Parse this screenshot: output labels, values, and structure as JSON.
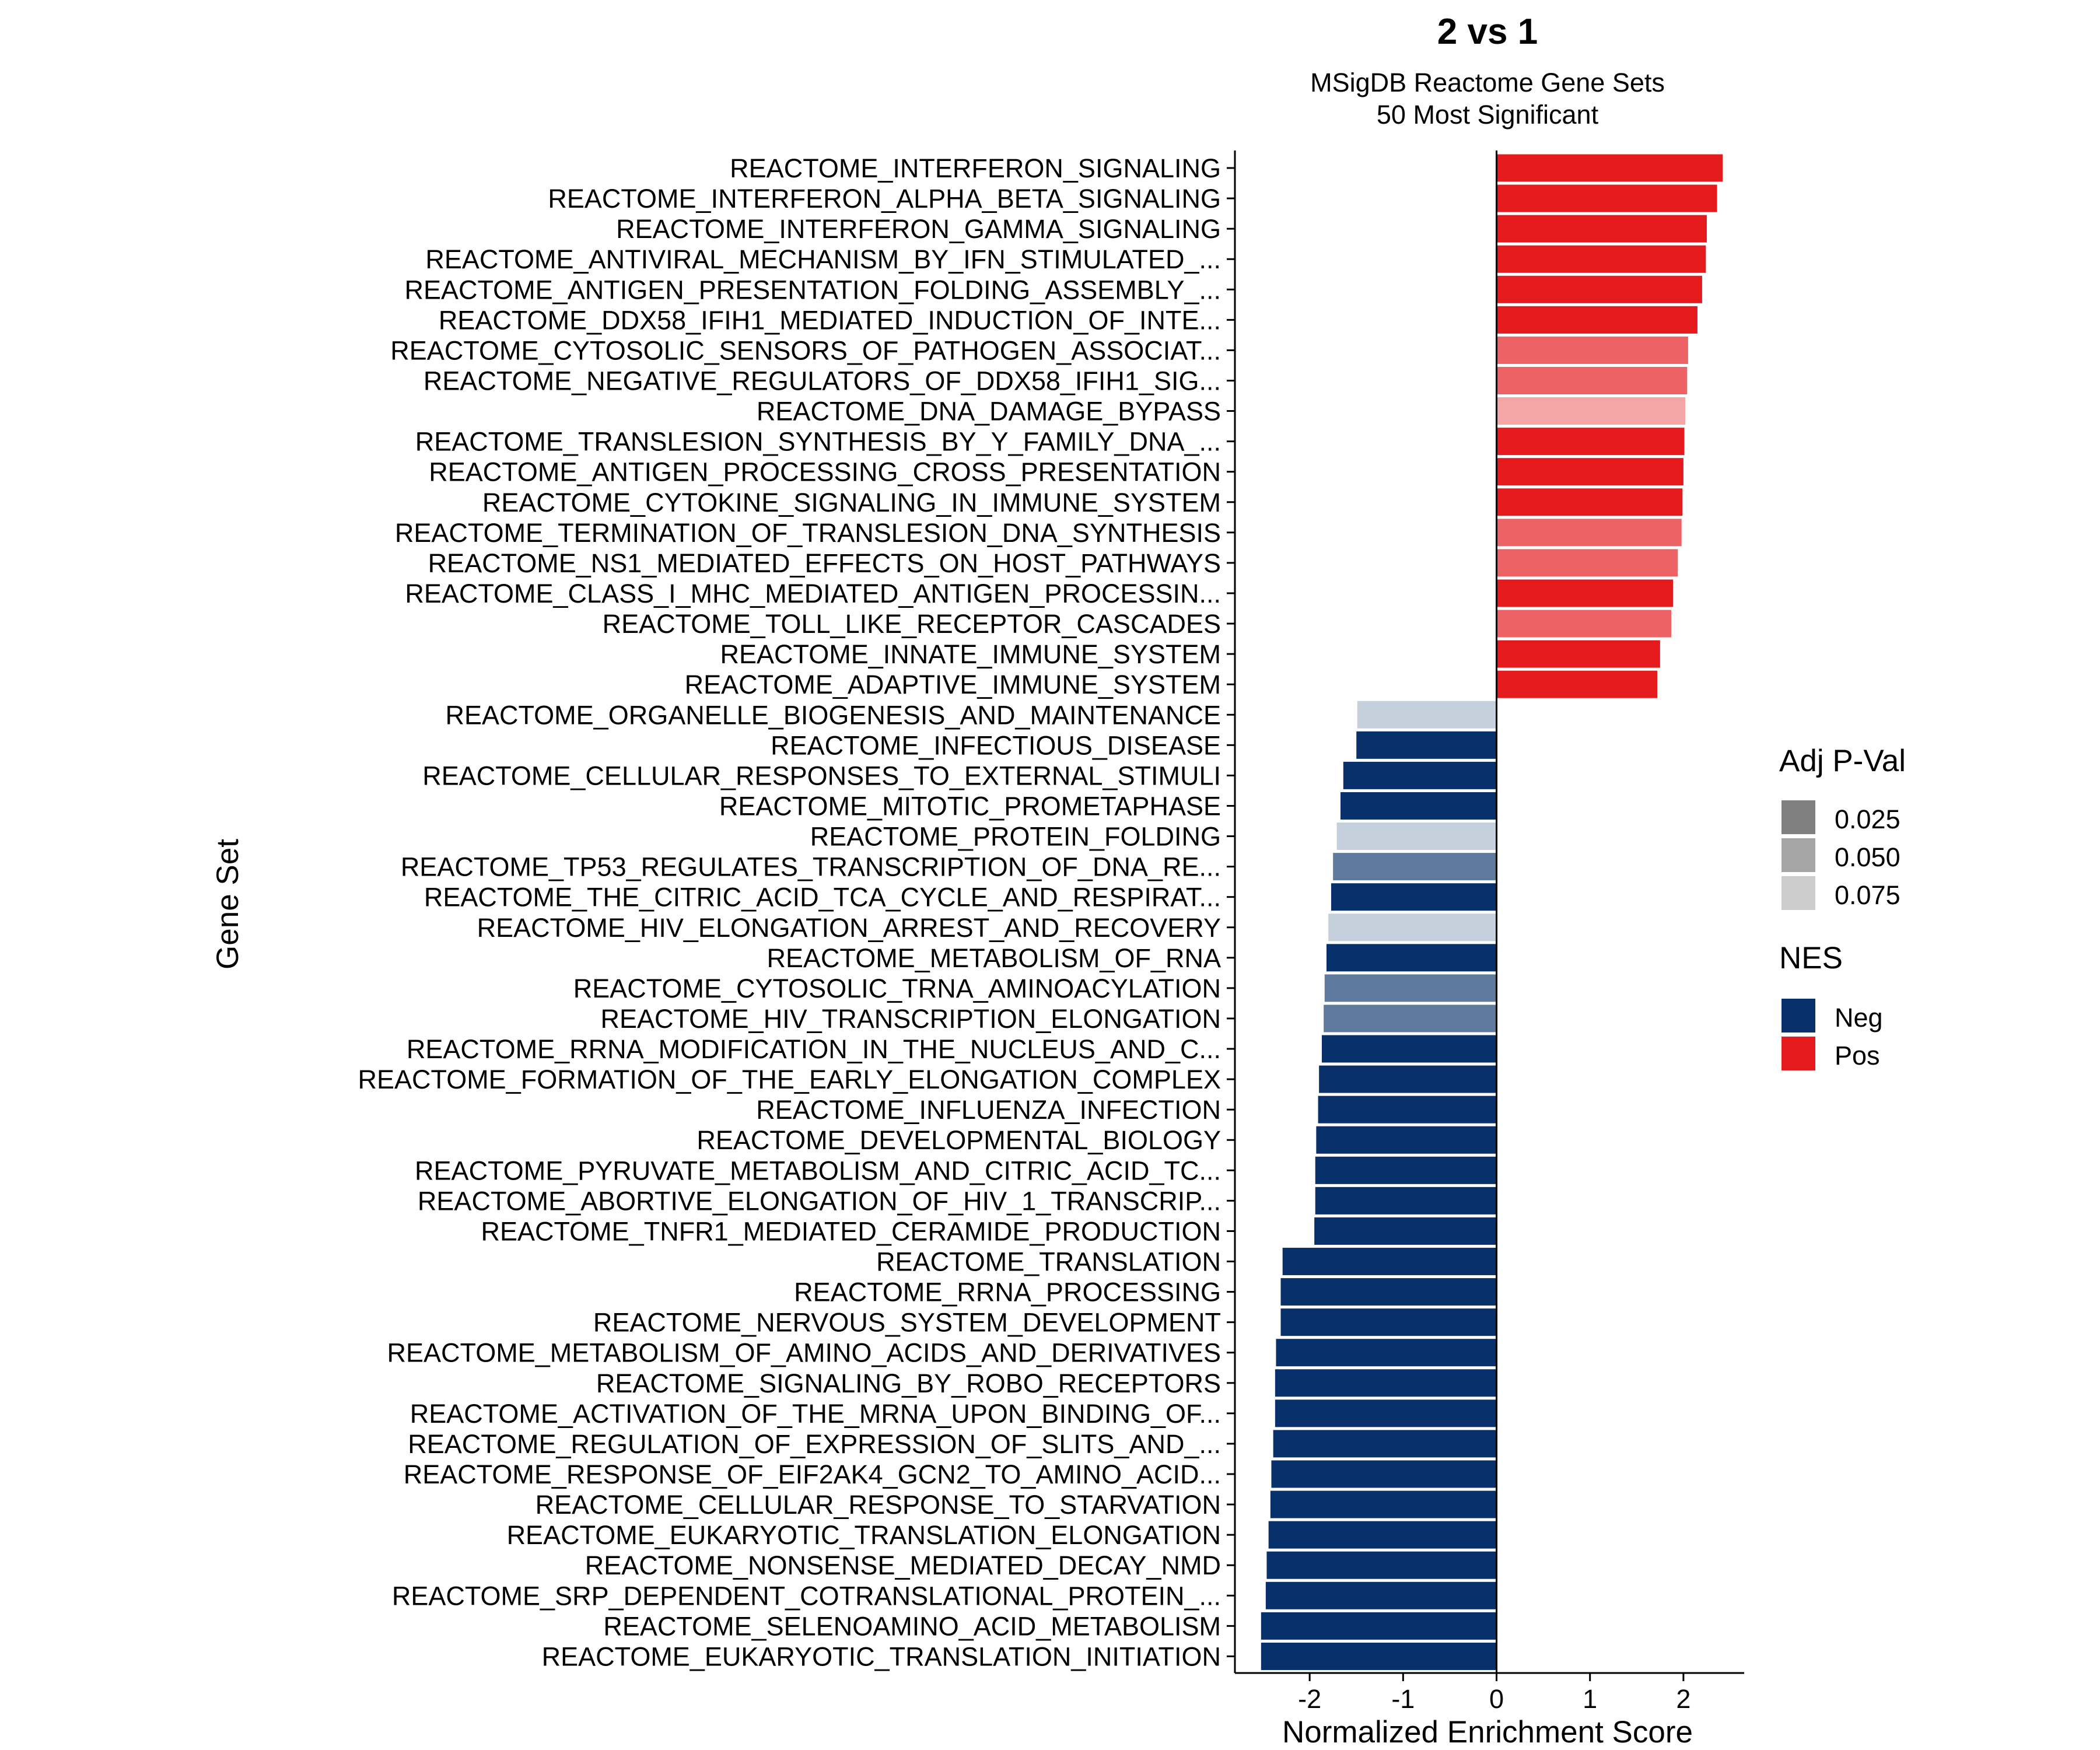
{
  "colors": {
    "pos_strong": "#E41A1C",
    "pos_mid": "#ED6264",
    "pos_light": "#F4A5A6",
    "neg_strong": "#08306B",
    "neg_mid": "#5E7A9C",
    "neg_light": "#C5D0DC",
    "legend_p1": "#808080",
    "legend_p2": "#A6A6A6",
    "legend_p3": "#CCCCCC"
  },
  "chart_data": {
    "type": "bar",
    "orientation": "horizontal",
    "title": "2 vs 1",
    "subtitle_lines": [
      "MSigDB Reactome Gene Sets",
      "50 Most Significant"
    ],
    "xlabel": "Normalized Enrichment Score",
    "ylabel": "Gene Set",
    "xlim": [
      -2.8,
      2.65
    ],
    "xticks": [
      -2,
      -1,
      0,
      1,
      2
    ],
    "xtick_labels": [
      "-2",
      "-1",
      "0",
      "1",
      "2"
    ],
    "categories": [
      "REACTOME_INTERFERON_SIGNALING",
      "REACTOME_INTERFERON_ALPHA_BETA_SIGNALING",
      "REACTOME_INTERFERON_GAMMA_SIGNALING",
      "REACTOME_ANTIVIRAL_MECHANISM_BY_IFN_STIMULATED_...",
      "REACTOME_ANTIGEN_PRESENTATION_FOLDING_ASSEMBLY_...",
      "REACTOME_DDX58_IFIH1_MEDIATED_INDUCTION_OF_INTE...",
      "REACTOME_CYTOSOLIC_SENSORS_OF_PATHOGEN_ASSOCIAT...",
      "REACTOME_NEGATIVE_REGULATORS_OF_DDX58_IFIH1_SIG...",
      "REACTOME_DNA_DAMAGE_BYPASS",
      "REACTOME_TRANSLESION_SYNTHESIS_BY_Y_FAMILY_DNA_...",
      "REACTOME_ANTIGEN_PROCESSING_CROSS_PRESENTATION",
      "REACTOME_CYTOKINE_SIGNALING_IN_IMMUNE_SYSTEM",
      "REACTOME_TERMINATION_OF_TRANSLESION_DNA_SYNTHESIS",
      "REACTOME_NS1_MEDIATED_EFFECTS_ON_HOST_PATHWAYS",
      "REACTOME_CLASS_I_MHC_MEDIATED_ANTIGEN_PROCESSIN...",
      "REACTOME_TOLL_LIKE_RECEPTOR_CASCADES",
      "REACTOME_INNATE_IMMUNE_SYSTEM",
      "REACTOME_ADAPTIVE_IMMUNE_SYSTEM",
      "REACTOME_ORGANELLE_BIOGENESIS_AND_MAINTENANCE",
      "REACTOME_INFECTIOUS_DISEASE",
      "REACTOME_CELLULAR_RESPONSES_TO_EXTERNAL_STIMULI",
      "REACTOME_MITOTIC_PROMETAPHASE",
      "REACTOME_PROTEIN_FOLDING",
      "REACTOME_TP53_REGULATES_TRANSCRIPTION_OF_DNA_RE...",
      "REACTOME_THE_CITRIC_ACID_TCA_CYCLE_AND_RESPIRAT...",
      "REACTOME_HIV_ELONGATION_ARREST_AND_RECOVERY",
      "REACTOME_METABOLISM_OF_RNA",
      "REACTOME_CYTOSOLIC_TRNA_AMINOACYLATION",
      "REACTOME_HIV_TRANSCRIPTION_ELONGATION",
      "REACTOME_RRNA_MODIFICATION_IN_THE_NUCLEUS_AND_C...",
      "REACTOME_FORMATION_OF_THE_EARLY_ELONGATION_COMPLEX",
      "REACTOME_INFLUENZA_INFECTION",
      "REACTOME_DEVELOPMENTAL_BIOLOGY",
      "REACTOME_PYRUVATE_METABOLISM_AND_CITRIC_ACID_TC...",
      "REACTOME_ABORTIVE_ELONGATION_OF_HIV_1_TRANSCRIP...",
      "REACTOME_TNFR1_MEDIATED_CERAMIDE_PRODUCTION",
      "REACTOME_TRANSLATION",
      "REACTOME_RRNA_PROCESSING",
      "REACTOME_NERVOUS_SYSTEM_DEVELOPMENT",
      "REACTOME_METABOLISM_OF_AMINO_ACIDS_AND_DERIVATIVES",
      "REACTOME_SIGNALING_BY_ROBO_RECEPTORS",
      "REACTOME_ACTIVATION_OF_THE_MRNA_UPON_BINDING_OF...",
      "REACTOME_REGULATION_OF_EXPRESSION_OF_SLITS_AND_...",
      "REACTOME_RESPONSE_OF_EIF2AK4_GCN2_TO_AMINO_ACID...",
      "REACTOME_CELLULAR_RESPONSE_TO_STARVATION",
      "REACTOME_EUKARYOTIC_TRANSLATION_ELONGATION",
      "REACTOME_NONSENSE_MEDIATED_DECAY_NMD",
      "REACTOME_SRP_DEPENDENT_COTRANSLATIONAL_PROTEIN_...",
      "REACTOME_SELENOAMINO_ACID_METABOLISM",
      "REACTOME_EUKARYOTIC_TRANSLATION_INITIATION"
    ],
    "values": [
      2.42,
      2.36,
      2.25,
      2.24,
      2.2,
      2.15,
      2.05,
      2.04,
      2.02,
      2.01,
      2.0,
      1.99,
      1.98,
      1.94,
      1.89,
      1.87,
      1.75,
      1.72,
      -1.49,
      -1.5,
      -1.64,
      -1.67,
      -1.71,
      -1.75,
      -1.77,
      -1.8,
      -1.82,
      -1.84,
      -1.85,
      -1.87,
      -1.9,
      -1.91,
      -1.93,
      -1.94,
      -1.94,
      -1.95,
      -2.29,
      -2.31,
      -2.31,
      -2.36,
      -2.37,
      -2.37,
      -2.39,
      -2.41,
      -2.42,
      -2.44,
      -2.46,
      -2.47,
      -2.52,
      -2.52
    ],
    "fill_levels": [
      "strong",
      "strong",
      "strong",
      "strong",
      "strong",
      "strong",
      "mid",
      "mid",
      "light",
      "strong",
      "strong",
      "strong",
      "mid",
      "mid",
      "strong",
      "mid",
      "strong",
      "strong",
      "light",
      "strong",
      "strong",
      "strong",
      "light",
      "mid",
      "strong",
      "light",
      "strong",
      "mid",
      "mid",
      "strong",
      "strong",
      "strong",
      "strong",
      "strong",
      "strong",
      "strong",
      "strong",
      "strong",
      "strong",
      "strong",
      "strong",
      "strong",
      "strong",
      "strong",
      "strong",
      "strong",
      "strong",
      "strong",
      "strong",
      "strong"
    ],
    "legend": [
      {
        "title": "Adj P-Val",
        "entries": [
          "0.025",
          "0.050",
          "0.075"
        ]
      },
      {
        "title": "NES",
        "entries": [
          "Neg",
          "Pos"
        ]
      }
    ],
    "legend_position": "right"
  }
}
